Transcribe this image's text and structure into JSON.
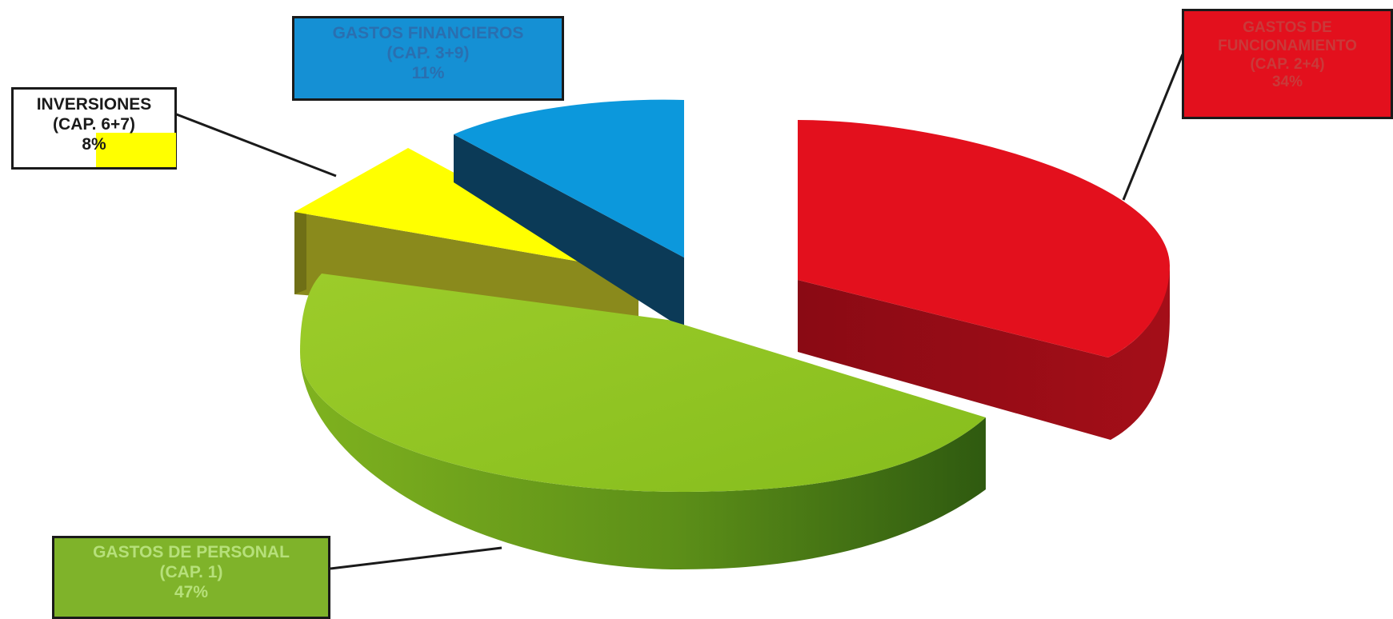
{
  "chart_data": {
    "type": "pie",
    "style": "3d-exploded",
    "legend": "none",
    "slices": [
      {
        "key": "personal",
        "label": "GASTOS DE PERSONAL",
        "cap": "(CAP. 1)",
        "percent_label": "47%",
        "value": 47,
        "color": "#8cc21f"
      },
      {
        "key": "funcionamiento",
        "label": "GASTOS DE FUNCIONAMIENTO",
        "cap": "(CAP. 2+4)",
        "percent_label": "34%",
        "value": 34,
        "color": "#e3101d"
      },
      {
        "key": "financieros",
        "label": "GASTOS FINANCIEROS",
        "cap": "(CAP. 3+9)",
        "percent_label": "11%",
        "value": 11,
        "color": "#0c98dc"
      },
      {
        "key": "inversiones",
        "label": "INVERSIONES",
        "cap": "(CAP. 6+7)",
        "percent_label": "8%",
        "value": 8,
        "color": "#ffff00"
      }
    ]
  }
}
